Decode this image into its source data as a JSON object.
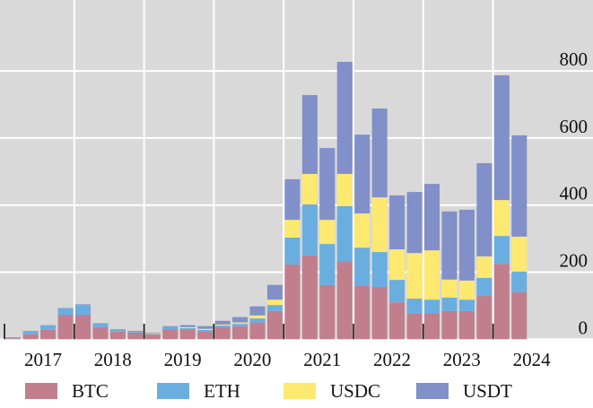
{
  "chart_data": {
    "type": "bar",
    "stacked": true,
    "title": "",
    "xlabel": "",
    "ylabel": "",
    "ylim": [
      0,
      830
    ],
    "y_ticks": [
      0,
      200,
      400,
      600,
      800
    ],
    "y_axis_side": "right",
    "grid": true,
    "legend_position": "bottom",
    "x_tick_labels": [
      "2017",
      "2018",
      "2019",
      "2020",
      "2021",
      "2022",
      "2023",
      "2024"
    ],
    "categories": [
      "2017Q1",
      "2017Q2",
      "2017Q3",
      "2017Q4",
      "2018Q1",
      "2018Q2",
      "2018Q3",
      "2018Q4",
      "2019Q1",
      "2019Q2",
      "2019Q3",
      "2019Q4",
      "2020Q1",
      "2020Q2",
      "2020Q3",
      "2020Q4",
      "2021Q1",
      "2021Q2",
      "2021Q3",
      "2021Q4",
      "2022Q1",
      "2022Q2",
      "2022Q3",
      "2022Q4",
      "2023Q1",
      "2023Q2",
      "2023Q3",
      "2023Q4",
      "2024Q1",
      "2024Q2"
    ],
    "series": [
      {
        "name": "BTC",
        "color": "#c17f8e",
        "values": [
          3,
          15,
          28,
          73,
          73,
          36,
          23,
          20,
          14,
          30,
          30,
          23,
          36,
          39,
          50,
          84,
          223,
          250,
          162,
          232,
          159,
          156,
          110,
          76,
          78,
          84,
          84,
          129,
          225,
          140
        ]
      },
      {
        "name": "ETH",
        "color": "#6aaee0",
        "values": [
          3,
          10,
          14,
          18,
          29,
          11,
          6,
          3,
          2,
          6,
          3,
          5,
          5,
          7,
          12,
          18,
          80,
          152,
          122,
          165,
          114,
          104,
          67,
          45,
          40,
          40,
          34,
          54,
          83,
          62
        ]
      },
      {
        "name": "USDC",
        "color": "#fde870",
        "values": [
          0,
          0,
          0,
          0,
          0,
          0,
          0,
          0,
          2,
          0,
          3,
          3,
          3,
          4,
          9,
          16,
          53,
          91,
          72,
          96,
          102,
          163,
          91,
          136,
          147,
          54,
          57,
          64,
          107,
          104
        ]
      },
      {
        "name": "USDT",
        "color": "#8190c8",
        "values": [
          0,
          0,
          0,
          2,
          2,
          1,
          1,
          2,
          2,
          3,
          6,
          8,
          11,
          16,
          27,
          44,
          121,
          235,
          214,
          334,
          235,
          265,
          161,
          182,
          198,
          203,
          211,
          278,
          372,
          302
        ]
      }
    ]
  },
  "colors": {
    "plot_background": "#d9d9d9",
    "grid": "#ffffff"
  }
}
